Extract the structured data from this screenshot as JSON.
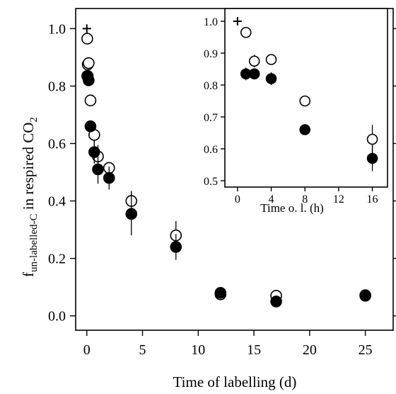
{
  "chart_data": [
    {
      "type": "scatter",
      "panel": "main",
      "xlabel": "Time of labelling (d)",
      "ylabel_main": "f",
      "ylabel_subscript": "un-labelled-C",
      "ylabel_rest": " in respired CO",
      "ylabel_co2_subscript": "2",
      "xlim": [
        -1,
        27.5
      ],
      "ylim": [
        -0.05,
        1.07
      ],
      "xticks": [
        0,
        5,
        10,
        15,
        20,
        25
      ],
      "xtick_labels": [
        "0",
        "5",
        "10",
        "15",
        "20",
        "25"
      ],
      "yticks": [
        0.0,
        0.2,
        0.4,
        0.6,
        0.8,
        1.0
      ],
      "ytick_labels": [
        "0.0",
        "0.2",
        "0.4",
        "0.6",
        "0.8",
        "1.0"
      ],
      "grid": false,
      "start_marker": {
        "x": 0,
        "y": 1.0,
        "symbol": "+"
      },
      "series": [
        {
          "marker": "open-circle",
          "points": [
            {
              "x": 0.04,
              "y": 0.965
            },
            {
              "x": 0.083,
              "y": 0.875,
              "err": 0.02
            },
            {
              "x": 0.167,
              "y": 0.88
            },
            {
              "x": 0.33,
              "y": 0.75
            },
            {
              "x": 0.67,
              "y": 0.63,
              "err": 0.045
            },
            {
              "x": 1,
              "y": 0.555,
              "err": 0.04
            },
            {
              "x": 2,
              "y": 0.515
            },
            {
              "x": 4,
              "y": 0.4,
              "err": 0.035
            },
            {
              "x": 8,
              "y": 0.28,
              "err": 0.05
            },
            {
              "x": 12,
              "y": 0.075,
              "err": 0.02
            },
            {
              "x": 17,
              "y": 0.07
            },
            {
              "x": 25,
              "y": 0.072,
              "err": 0.02
            }
          ]
        },
        {
          "marker": "filled-circle",
          "points": [
            {
              "x": 0.04,
              "y": 0.835,
              "err": 0.02
            },
            {
              "x": 0.083,
              "y": 0.835
            },
            {
              "x": 0.167,
              "y": 0.82,
              "err": 0.02
            },
            {
              "x": 0.33,
              "y": 0.66
            },
            {
              "x": 0.67,
              "y": 0.57,
              "err": 0.04
            },
            {
              "x": 1,
              "y": 0.51,
              "err": 0.05
            },
            {
              "x": 2,
              "y": 0.48,
              "err": 0.04
            },
            {
              "x": 4,
              "y": 0.355,
              "err": 0.075
            },
            {
              "x": 8,
              "y": 0.24,
              "err": 0.045
            },
            {
              "x": 12,
              "y": 0.08,
              "err": 0.02
            },
            {
              "x": 17,
              "y": 0.05,
              "err": 0.02
            },
            {
              "x": 25,
              "y": 0.07
            }
          ]
        }
      ]
    },
    {
      "type": "scatter",
      "panel": "inset",
      "xlabel": "Time o. l. (h)",
      "xlim": [
        -1.5,
        17.8
      ],
      "ylim": [
        0.48,
        1.04
      ],
      "xticks": [
        0,
        4,
        8,
        12,
        16
      ],
      "xtick_labels": [
        "0",
        "4",
        "8",
        "12",
        "16"
      ],
      "yticks": [
        0.5,
        0.6,
        0.7,
        0.8,
        0.9,
        1.0
      ],
      "ytick_labels": [
        "0.5",
        "0.6",
        "0.7",
        "0.8",
        "0.9",
        "1.0"
      ],
      "grid": false,
      "start_marker": {
        "x": 0,
        "y": 1.0,
        "symbol": "+"
      },
      "series": [
        {
          "marker": "open-circle",
          "points": [
            {
              "x": 1,
              "y": 0.965
            },
            {
              "x": 2,
              "y": 0.875,
              "err": 0.02
            },
            {
              "x": 4,
              "y": 0.88
            },
            {
              "x": 8,
              "y": 0.75
            },
            {
              "x": 16,
              "y": 0.63,
              "err": 0.045
            }
          ]
        },
        {
          "marker": "filled-circle",
          "points": [
            {
              "x": 1,
              "y": 0.835,
              "err": 0.02
            },
            {
              "x": 2,
              "y": 0.835
            },
            {
              "x": 4,
              "y": 0.82,
              "err": 0.02
            },
            {
              "x": 8,
              "y": 0.66
            },
            {
              "x": 16,
              "y": 0.57,
              "err": 0.04
            }
          ]
        }
      ]
    }
  ]
}
